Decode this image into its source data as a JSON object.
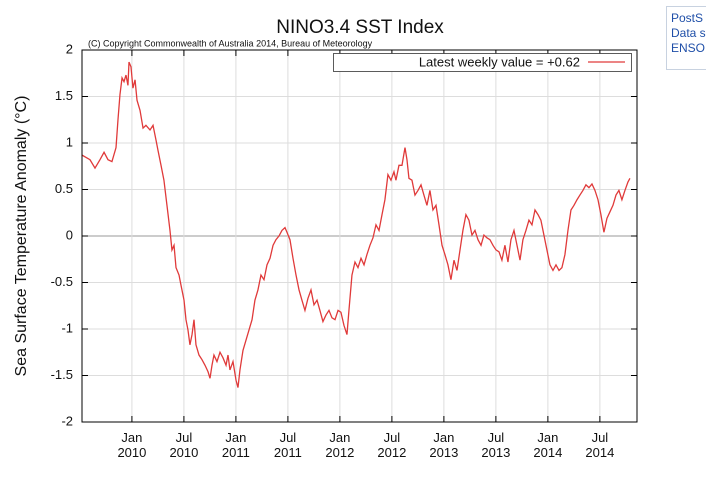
{
  "chart_data": {
    "type": "line",
    "title": "NINO3.4 SST Index",
    "subtitle": "(C) Copyright Commonwealth of Australia 2014, Bureau of Meteorology",
    "y_label": "Sea Surface Temperature Anomaly (°C)",
    "xlim": [
      2009.52,
      2014.857
    ],
    "ylim": [
      -2,
      2
    ],
    "yticks": [
      -2,
      -1.5,
      -1,
      -0.5,
      0,
      0.5,
      1,
      1.5,
      2
    ],
    "xticks": [
      {
        "value": 2010.0,
        "label": "Jan 2010"
      },
      {
        "value": 2010.5,
        "label": "Jul 2010"
      },
      {
        "value": 2011.0,
        "label": "Jan 2011"
      },
      {
        "value": 2011.5,
        "label": "Jul 2011"
      },
      {
        "value": 2012.0,
        "label": "Jan 2012"
      },
      {
        "value": 2012.5,
        "label": "Jul 2012"
      },
      {
        "value": 2013.0,
        "label": "Jan 2013"
      },
      {
        "value": 2013.5,
        "label": "Jul 2013"
      },
      {
        "value": 2014.0,
        "label": "Jan 2014"
      },
      {
        "value": 2014.5,
        "label": "Jul 2014"
      }
    ],
    "grid": true,
    "legend": "top-right",
    "x": [
      2009.52,
      2009.597,
      2009.645,
      2009.693,
      2009.732,
      2009.77,
      2009.808,
      2009.847,
      2009.866,
      2009.885,
      2009.905,
      2009.924,
      2009.943,
      2009.962,
      2009.972,
      2009.991,
      2010.01,
      2010.03,
      2010.049,
      2010.078,
      2010.107,
      2010.135,
      2010.174,
      2010.203,
      2010.232,
      2010.251,
      2010.28,
      2010.308,
      2010.337,
      2010.366,
      2010.385,
      2010.405,
      2010.424,
      2010.453,
      2010.472,
      2010.501,
      2010.52,
      2010.539,
      2010.558,
      2010.578,
      2010.597,
      2010.616,
      2010.645,
      2010.674,
      2010.703,
      2010.732,
      2010.751,
      2010.77,
      2010.789,
      2010.818,
      2010.847,
      2010.876,
      2010.905,
      2010.924,
      2010.943,
      2010.972,
      2011.001,
      2011.02,
      2011.039,
      2011.068,
      2011.097,
      2011.126,
      2011.155,
      2011.183,
      2011.212,
      2011.241,
      2011.27,
      2011.299,
      2011.328,
      2011.357,
      2011.385,
      2011.414,
      2011.443,
      2011.472,
      2011.491,
      2011.52,
      2011.549,
      2011.578,
      2011.607,
      2011.635,
      2011.664,
      2011.693,
      2011.722,
      2011.751,
      2011.78,
      2011.808,
      2011.837,
      2011.866,
      2011.895,
      2011.924,
      2011.953,
      2011.982,
      2012.01,
      2012.039,
      2012.068,
      2012.087,
      2012.116,
      2012.145,
      2012.174,
      2012.203,
      2012.232,
      2012.26,
      2012.289,
      2012.318,
      2012.347,
      2012.376,
      2012.405,
      2012.433,
      2012.462,
      2012.491,
      2012.52,
      2012.539,
      2012.568,
      2012.597,
      2012.626,
      2012.645,
      2012.664,
      2012.693,
      2012.722,
      2012.751,
      2012.78,
      2012.808,
      2012.837,
      2012.866,
      2012.895,
      2012.924,
      2012.953,
      2012.982,
      2013.01,
      2013.039,
      2013.068,
      2013.097,
      2013.126,
      2013.155,
      2013.183,
      2013.212,
      2013.241,
      2013.27,
      2013.299,
      2013.328,
      2013.357,
      2013.385,
      2013.414,
      2013.443,
      2013.472,
      2013.501,
      2013.53,
      2013.558,
      2013.587,
      2013.616,
      2013.645,
      2013.674,
      2013.703,
      2013.732,
      2013.76,
      2013.789,
      2013.818,
      2013.847,
      2013.876,
      2013.905,
      2013.933,
      2013.962,
      2013.991,
      2014.02,
      2014.049,
      2014.078,
      2014.107,
      2014.135,
      2014.164,
      2014.193,
      2014.222,
      2014.251,
      2014.28,
      2014.308,
      2014.337,
      2014.366,
      2014.395,
      2014.424,
      2014.453,
      2014.482,
      2014.51,
      2014.539,
      2014.568,
      2014.597,
      2014.626,
      2014.655,
      2014.683,
      2014.712,
      2014.741,
      2014.77,
      2014.789
    ],
    "series": [
      {
        "name": "Latest weekly value = +0.62",
        "color": "#e03a3a",
        "values": [
          0.87,
          0.82,
          0.73,
          0.82,
          0.9,
          0.82,
          0.8,
          0.95,
          1.25,
          1.52,
          1.7,
          1.66,
          1.73,
          1.62,
          1.87,
          1.82,
          1.59,
          1.68,
          1.46,
          1.35,
          1.16,
          1.19,
          1.14,
          1.19,
          1.03,
          0.92,
          0.76,
          0.6,
          0.33,
          0.06,
          -0.15,
          -0.1,
          -0.34,
          -0.42,
          -0.53,
          -0.69,
          -0.9,
          -1.01,
          -1.17,
          -1.06,
          -0.9,
          -1.17,
          -1.28,
          -1.33,
          -1.39,
          -1.46,
          -1.53,
          -1.39,
          -1.28,
          -1.35,
          -1.25,
          -1.31,
          -1.39,
          -1.28,
          -1.44,
          -1.35,
          -1.55,
          -1.63,
          -1.44,
          -1.23,
          -1.12,
          -1.01,
          -0.9,
          -0.69,
          -0.58,
          -0.42,
          -0.47,
          -0.31,
          -0.24,
          -0.1,
          -0.04,
          0.0,
          0.06,
          0.09,
          0.04,
          -0.04,
          -0.24,
          -0.42,
          -0.58,
          -0.69,
          -0.8,
          -0.67,
          -0.58,
          -0.74,
          -0.69,
          -0.8,
          -0.92,
          -0.85,
          -0.8,
          -0.88,
          -0.9,
          -0.8,
          -0.82,
          -0.96,
          -1.06,
          -0.8,
          -0.42,
          -0.28,
          -0.34,
          -0.24,
          -0.31,
          -0.2,
          -0.1,
          -0.02,
          0.12,
          0.06,
          0.23,
          0.39,
          0.66,
          0.6,
          0.69,
          0.6,
          0.76,
          0.76,
          0.95,
          0.82,
          0.62,
          0.6,
          0.44,
          0.49,
          0.55,
          0.44,
          0.33,
          0.49,
          0.28,
          0.33,
          0.12,
          -0.1,
          -0.2,
          -0.31,
          -0.47,
          -0.26,
          -0.37,
          -0.15,
          0.06,
          0.23,
          0.17,
          0.01,
          0.06,
          -0.04,
          -0.1,
          0.01,
          -0.02,
          -0.04,
          -0.1,
          -0.15,
          -0.17,
          -0.26,
          -0.1,
          -0.28,
          -0.04,
          0.06,
          -0.1,
          -0.26,
          -0.04,
          0.06,
          0.17,
          0.12,
          0.28,
          0.23,
          0.17,
          0.01,
          -0.15,
          -0.31,
          -0.37,
          -0.31,
          -0.37,
          -0.34,
          -0.2,
          0.06,
          0.28,
          0.33,
          0.39,
          0.44,
          0.49,
          0.55,
          0.52,
          0.56,
          0.49,
          0.39,
          0.23,
          0.04,
          0.19,
          0.26,
          0.33,
          0.44,
          0.49,
          0.39,
          0.49,
          0.58,
          0.62
        ]
      }
    ]
  },
  "sidebar_links": [
    "PostS",
    "Data s",
    "ENSO"
  ]
}
